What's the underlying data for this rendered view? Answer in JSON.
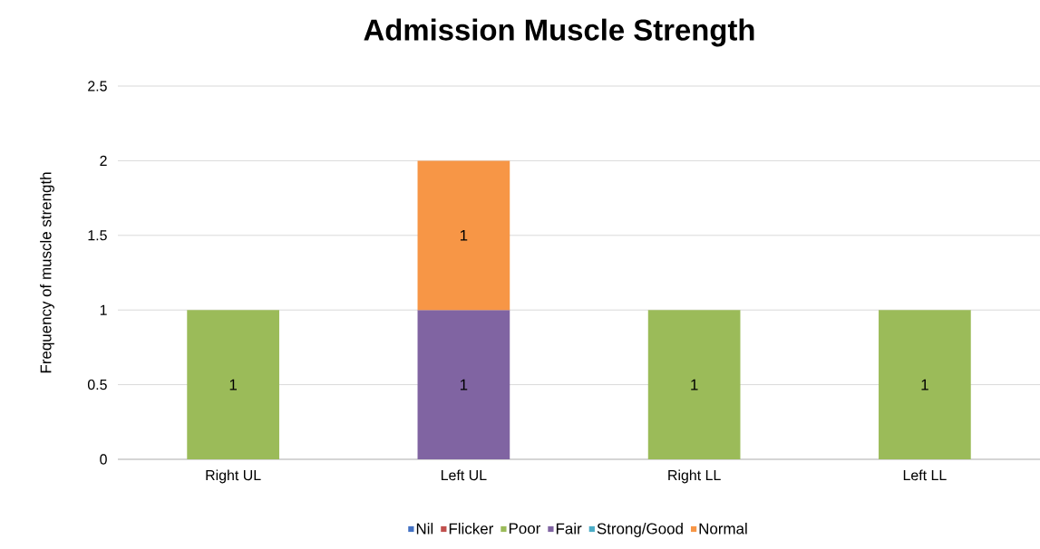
{
  "chart_data": {
    "type": "bar",
    "title": "Admission Muscle Strength",
    "ylabel": "Frequency of muscle strength",
    "categories": [
      "Right UL",
      "Left UL",
      "Right LL",
      "Left LL"
    ],
    "series": [
      {
        "name": "Nil",
        "color": "#4472c4",
        "values": [
          null,
          null,
          null,
          null
        ]
      },
      {
        "name": "Flicker",
        "color": "#c0504d",
        "values": [
          null,
          null,
          null,
          null
        ]
      },
      {
        "name": "Poor",
        "color": "#9bbb59",
        "values": [
          1,
          null,
          1,
          1
        ]
      },
      {
        "name": "Fair",
        "color": "#8064a2",
        "values": [
          null,
          1,
          null,
          null
        ]
      },
      {
        "name": "Strong/Good",
        "color": "#4bacc6",
        "values": [
          null,
          null,
          null,
          null
        ]
      },
      {
        "name": "Normal",
        "color": "#f79646",
        "values": [
          null,
          1,
          null,
          null
        ]
      }
    ],
    "stacked": true,
    "data_labels": true,
    "ylim": [
      0,
      2.5
    ],
    "yticks": [
      0,
      0.5,
      1,
      1.5,
      2,
      2.5
    ],
    "grid": "y",
    "legend": "bottom"
  }
}
